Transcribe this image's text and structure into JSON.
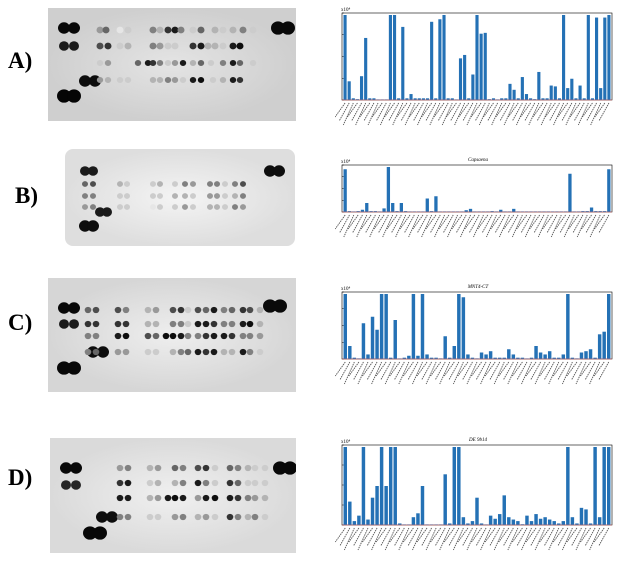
{
  "figure": {
    "panels": [
      {
        "label": "A)",
        "chart_title": "",
        "exponent": "x10⁴"
      },
      {
        "label": "B)",
        "chart_title": "Capsaena",
        "exponent": "x10⁴"
      },
      {
        "label": "C)",
        "chart_title": "MNT4-CT",
        "exponent": "x10⁴"
      },
      {
        "label": "D)",
        "chart_title": "DE 9b14",
        "exponent": "x10⁴"
      }
    ]
  },
  "colors": {
    "bar": "#2471b5",
    "error": "#e06060",
    "blot_bg": "#d9d9d9"
  },
  "chart_data": [
    {
      "type": "bar",
      "title": "",
      "ylim": [
        0,
        1
      ],
      "values": [
        1.0,
        0.22,
        0.02,
        0.01,
        0.28,
        0.73,
        0.02,
        0.02,
        0.0,
        0.0,
        0.0,
        1.0,
        1.0,
        0.02,
        0.86,
        0.02,
        0.07,
        0.02,
        0.02,
        0.02,
        0.02,
        0.92,
        0.02,
        0.95,
        1.0,
        0.02,
        0.02,
        0.0,
        0.49,
        0.53,
        0.02,
        0.3,
        1.0,
        0.78,
        0.79,
        0.01,
        0.02,
        0.0,
        0.02,
        0.02,
        0.19,
        0.12,
        0.02,
        0.27,
        0.07,
        0.02,
        0.01,
        0.33,
        0.02,
        0.02,
        0.17,
        0.16,
        0.02,
        1.0,
        0.14,
        0.25,
        0.02,
        0.17,
        0.02,
        1.0,
        0.02,
        0.97,
        0.14,
        0.97,
        1.0
      ]
    },
    {
      "type": "bar",
      "title": "Capsaena",
      "ylim": [
        0,
        1
      ],
      "values": [
        0.95,
        0.02,
        0.01,
        0.02,
        0.05,
        0.2,
        0.02,
        0.02,
        0.0,
        0.08,
        1.0,
        0.2,
        0.02,
        0.2,
        0.02,
        0.0,
        0.0,
        0.0,
        0.0,
        0.3,
        0.02,
        0.35,
        0.0,
        0.0,
        0.0,
        0.0,
        0.0,
        0.01,
        0.04,
        0.07,
        0.0,
        0.0,
        0.0,
        0.01,
        0.02,
        0.0,
        0.05,
        0.0,
        0.0,
        0.07,
        0.0,
        0.0,
        0.0,
        0.0,
        0.0,
        0.0,
        0.0,
        0.0,
        0.0,
        0.0,
        0.0,
        0.0,
        0.85,
        0.01,
        0.0,
        0.02,
        0.02,
        0.1,
        0.02,
        0.02,
        0.02,
        0.95
      ]
    },
    {
      "type": "bar",
      "title": "MNT4-CT",
      "ylim": [
        0,
        1
      ],
      "values": [
        1.0,
        0.2,
        0.02,
        0.01,
        0.55,
        0.07,
        0.65,
        0.45,
        1.0,
        1.0,
        0.02,
        0.6,
        0.0,
        0.02,
        0.05,
        1.0,
        0.05,
        1.0,
        0.07,
        0.02,
        0.02,
        0.01,
        0.35,
        0.02,
        0.2,
        1.0,
        0.95,
        0.07,
        0.02,
        0.01,
        0.1,
        0.07,
        0.12,
        0.02,
        0.02,
        0.02,
        0.15,
        0.07,
        0.02,
        0.02,
        0.0,
        0.02,
        0.2,
        0.1,
        0.07,
        0.12,
        0.02,
        0.02,
        0.07,
        1.0,
        0.02,
        0.01,
        0.1,
        0.12,
        0.15,
        0.02,
        0.38,
        0.42,
        1.0
      ]
    },
    {
      "type": "bar",
      "title": "DE 9b14",
      "ylim": [
        0,
        1
      ],
      "values": [
        1.0,
        0.3,
        0.05,
        0.12,
        1.0,
        0.07,
        0.35,
        0.5,
        1.0,
        0.5,
        1.0,
        1.0,
        0.02,
        0.0,
        0.0,
        0.1,
        0.15,
        0.5,
        0.0,
        0.0,
        0.0,
        0.0,
        0.65,
        0.02,
        1.0,
        1.0,
        0.1,
        0.02,
        0.05,
        0.35,
        0.02,
        0.0,
        0.12,
        0.08,
        0.14,
        0.38,
        0.1,
        0.07,
        0.05,
        0.01,
        0.12,
        0.05,
        0.14,
        0.08,
        0.1,
        0.07,
        0.05,
        0.02,
        0.05,
        1.0,
        0.1,
        0.02,
        0.22,
        0.2,
        0.02,
        1.0,
        0.1,
        1.0,
        1.0
      ]
    }
  ]
}
